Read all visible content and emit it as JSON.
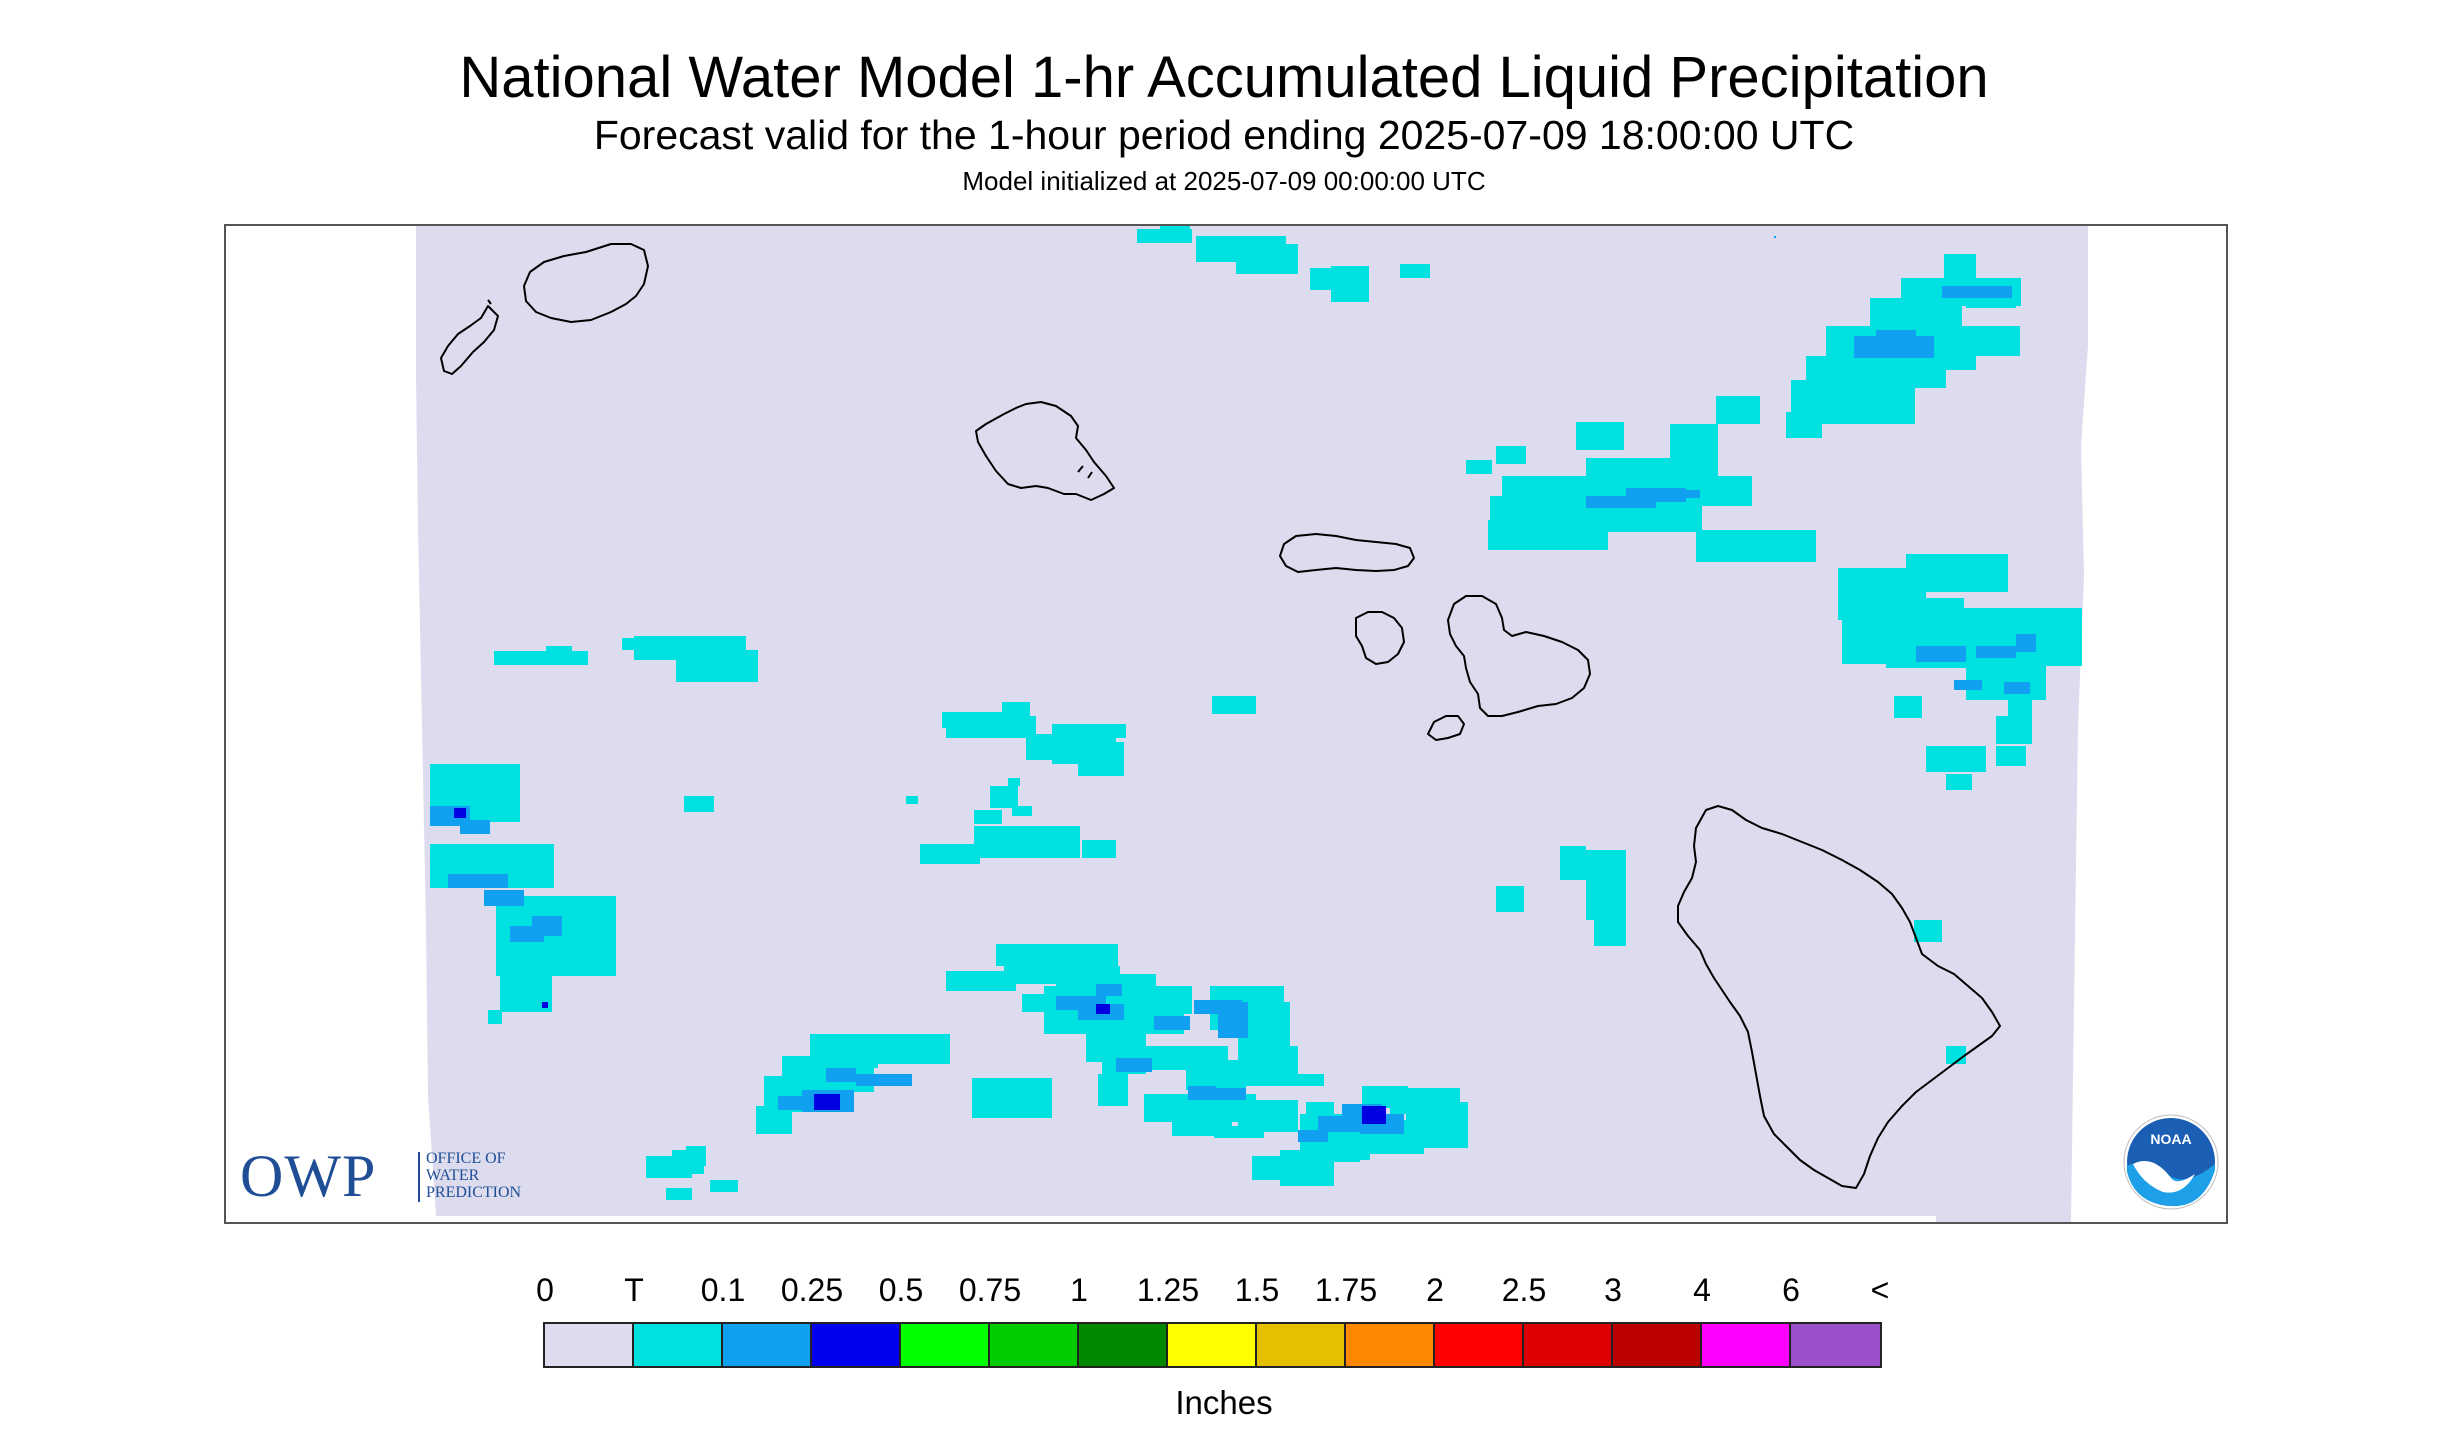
{
  "header": {
    "title": "National Water Model 1-hr Accumulated Liquid Precipitation",
    "subtitle": "Forecast valid for the 1-hour period ending 2025-07-09 18:00:00 UTC",
    "init_line": "Model initialized at 2025-07-09 00:00:00 UTC"
  },
  "map": {
    "region": "Hawaiian Islands",
    "background_color": "#dcdcee",
    "coastline_color": "#000000",
    "precip_colors": {
      "trace": "#00e0e0",
      "light": "#10a0f0",
      "moderate": "#0000e0"
    }
  },
  "logos": {
    "owp": {
      "letters": "OWP",
      "lines": [
        "OFFICE OF",
        "WATER",
        "PREDICTION"
      ],
      "color": "#1f4e96"
    },
    "noaa": {
      "text": "NOAA"
    }
  },
  "legend": {
    "ticks": [
      "0",
      "T",
      "0.1",
      "0.25",
      "0.5",
      "0.75",
      "1",
      "1.25",
      "1.5",
      "1.75",
      "2",
      "2.5",
      "3",
      "4",
      "6",
      "<"
    ],
    "colors": [
      "#dcdcee",
      "#00e0e0",
      "#10a0f0",
      "#0000f0",
      "#00ff00",
      "#00cc00",
      "#008800",
      "#ffff00",
      "#e6c000",
      "#ff8800",
      "#ff0000",
      "#dd0000",
      "#bb0000",
      "#ff00ff",
      "#9a50c8"
    ],
    "units": "Inches"
  }
}
